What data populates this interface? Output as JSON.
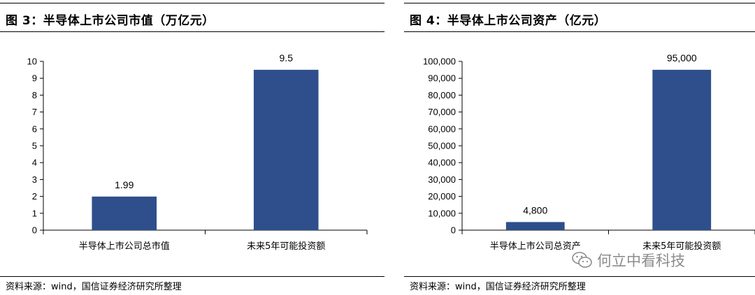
{
  "colors": {
    "bar": "#2E4F8B",
    "axis": "#000000",
    "watermark": "#8c8c8c"
  },
  "chart_data": [
    {
      "type": "bar",
      "title": "图 3：半导体上市公司市值（万亿元）",
      "categories": [
        "半导体上市公司总市值",
        "未来5年可能投资额"
      ],
      "values": [
        1.99,
        9.5
      ],
      "value_labels": [
        "1.99",
        "9.5"
      ],
      "ylim": [
        0,
        10
      ],
      "yticks": [
        "0",
        "1",
        "2",
        "3",
        "4",
        "5",
        "6",
        "7",
        "8",
        "9",
        "10"
      ],
      "ytick_values": [
        0,
        1,
        2,
        3,
        4,
        5,
        6,
        7,
        8,
        9,
        10
      ],
      "grid": false,
      "legend": "none",
      "source": "资料来源：wind，国信证券经济研究所整理"
    },
    {
      "type": "bar",
      "title": "图 4：半导体上市公司资产（亿元）",
      "categories": [
        "半导体上市公司总资产",
        "未来5年可能投资额"
      ],
      "values": [
        4800,
        95000
      ],
      "value_labels": [
        "4,800",
        "95,000"
      ],
      "ylim": [
        0,
        100000
      ],
      "yticks": [
        "0",
        "10,000",
        "20,000",
        "30,000",
        "40,000",
        "50,000",
        "60,000",
        "70,000",
        "80,000",
        "90,000",
        "100,000"
      ],
      "ytick_values": [
        0,
        10000,
        20000,
        30000,
        40000,
        50000,
        60000,
        70000,
        80000,
        90000,
        100000
      ],
      "grid": false,
      "legend": "none",
      "source": "资料来源：wind，国信证券经济研究所整理"
    }
  ],
  "watermark": {
    "text": "何立中看科技",
    "icon": "wechat-icon"
  }
}
